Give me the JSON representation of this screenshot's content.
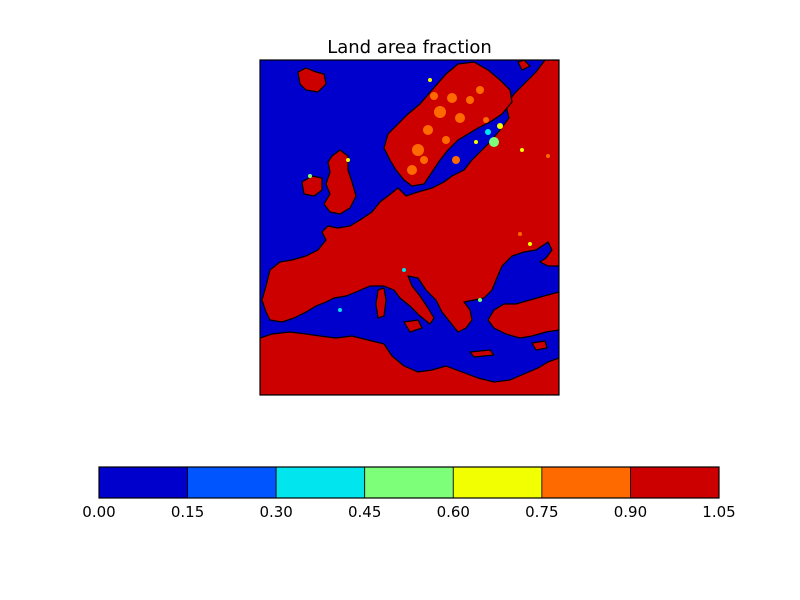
{
  "chart_data": {
    "type": "heatmap",
    "title": "Land area fraction",
    "xlabel": "",
    "ylabel": "",
    "grid": false,
    "map_region": "Europe",
    "colorbar": {
      "orientation": "horizontal",
      "placement": "bottom",
      "levels": [
        0.0,
        0.15,
        0.3,
        0.45,
        0.6,
        0.75,
        0.9,
        1.05
      ],
      "tick_labels": [
        "0.00",
        "0.15",
        "0.30",
        "0.45",
        "0.60",
        "0.75",
        "0.90",
        "1.05"
      ],
      "colors": [
        "#0000cd",
        "#0055ff",
        "#00e5ee",
        "#7dff7a",
        "#f2ff00",
        "#ff6a00",
        "#cd0000"
      ]
    },
    "field": {
      "sea_value": 0.0,
      "land_value": 1.0,
      "sea_color": "#0000cd",
      "land_color": "#cd0000",
      "coast_colors": [
        "#00e5ee",
        "#7dff7a",
        "#f2ff00",
        "#ff6a00"
      ],
      "scandinavia_mottled_color": "#ff6a00"
    }
  }
}
